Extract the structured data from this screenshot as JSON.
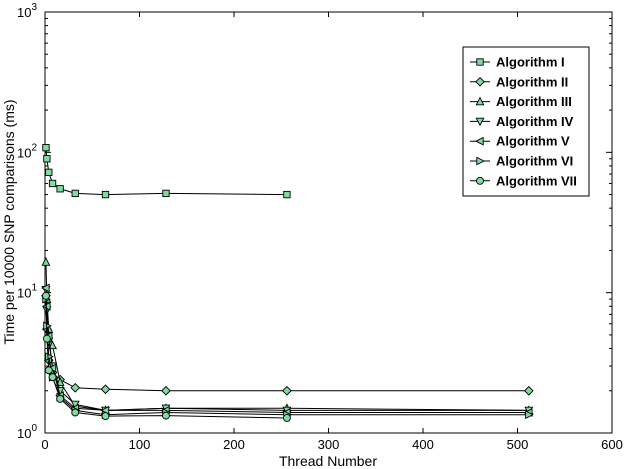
{
  "chart_data": {
    "type": "line",
    "title": "",
    "xlabel": "Thread Number",
    "ylabel": "Time per 10000 SNP comparisons (ms)",
    "xlim": [
      0,
      600
    ],
    "ylim": [
      1,
      1000
    ],
    "yscale": "log",
    "grid": false,
    "legend_position": "top-right",
    "marker_fill": "#7fdca0",
    "line_color": "#000000",
    "x_ticks": [
      {
        "value": 0,
        "label": "0"
      },
      {
        "value": 100,
        "label": "100"
      },
      {
        "value": 200,
        "label": "200"
      },
      {
        "value": 300,
        "label": "300"
      },
      {
        "value": 400,
        "label": "400"
      },
      {
        "value": 500,
        "label": "500"
      },
      {
        "value": 600,
        "label": "600"
      }
    ],
    "y_ticks": [
      {
        "value": 1,
        "base": "10",
        "exp": "0"
      },
      {
        "value": 10,
        "base": "10",
        "exp": "1"
      },
      {
        "value": 100,
        "base": "10",
        "exp": "2"
      },
      {
        "value": 1000,
        "base": "10",
        "exp": "3"
      }
    ],
    "series": [
      {
        "name": "Algorithm I",
        "marker": "square",
        "x": [
          1,
          2,
          4,
          8,
          16,
          32,
          64,
          128,
          256
        ],
        "y": [
          108,
          90,
          72,
          60,
          55,
          51,
          50,
          51,
          50
        ]
      },
      {
        "name": "Algorithm II",
        "marker": "diamond",
        "x": [
          1,
          2,
          4,
          8,
          16,
          32,
          64,
          128,
          256,
          512
        ],
        "y": [
          9.5,
          5.5,
          3.3,
          2.7,
          2.4,
          2.1,
          2.05,
          2.0,
          2.0,
          2.0
        ]
      },
      {
        "name": "Algorithm III",
        "marker": "triangle-up",
        "x": [
          1,
          2,
          4,
          8,
          16,
          32,
          64,
          128,
          256,
          512
        ],
        "y": [
          16.5,
          9.0,
          5.5,
          4.2,
          2.3,
          1.55,
          1.45,
          1.5,
          1.5,
          1.45
        ]
      },
      {
        "name": "Algorithm IV",
        "marker": "triangle-down",
        "x": [
          1,
          2,
          4,
          8,
          16,
          32,
          64,
          128,
          256,
          512
        ],
        "y": [
          10.5,
          7.5,
          4.5,
          3.0,
          2.0,
          1.6,
          1.45,
          1.5,
          1.45,
          1.45
        ]
      },
      {
        "name": "Algorithm V",
        "marker": "triangle-left",
        "x": [
          1,
          2,
          4,
          8,
          16,
          32,
          64,
          128,
          256,
          512
        ],
        "y": [
          10.8,
          8.0,
          4.9,
          2.9,
          1.85,
          1.5,
          1.45,
          1.45,
          1.4,
          1.4
        ]
      },
      {
        "name": "Algorithm VI",
        "marker": "triangle-right",
        "x": [
          1,
          2,
          4,
          8,
          16,
          32,
          64,
          128,
          256,
          512
        ],
        "y": [
          9.0,
          5.8,
          3.5,
          2.5,
          1.8,
          1.45,
          1.35,
          1.4,
          1.35,
          1.35
        ]
      },
      {
        "name": "Algorithm VII",
        "marker": "circle",
        "x": [
          1,
          2,
          4,
          8,
          16,
          32,
          64,
          128,
          256
        ],
        "y": [
          9.5,
          4.7,
          2.8,
          2.5,
          1.75,
          1.4,
          1.32,
          1.33,
          1.28
        ]
      }
    ]
  }
}
